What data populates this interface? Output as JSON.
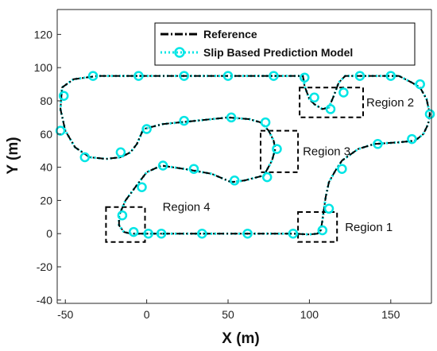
{
  "chart_data": {
    "type": "line",
    "title": "",
    "xlabel": "X (m)",
    "ylabel": "Y (m)",
    "xlim": [
      -55,
      175
    ],
    "ylim": [
      -42,
      135
    ],
    "xticks": [
      -50,
      0,
      50,
      100,
      150
    ],
    "yticks": [
      -40,
      -20,
      0,
      20,
      40,
      60,
      80,
      100,
      120
    ],
    "x_tick_labels": [
      "-50",
      "0",
      "50",
      "100",
      "150"
    ],
    "y_tick_labels": [
      "-40",
      "-20",
      "0",
      "20",
      "40",
      "60",
      "80",
      "100",
      "120"
    ],
    "grid": false,
    "legend_position": "top-right",
    "colors": {
      "reference": "#000000",
      "prediction": "#00e5e5"
    },
    "series": [
      {
        "name": "Reference",
        "style": "dash-dot",
        "x": [
          10,
          30,
          60,
          90,
          100,
          105,
          107,
          108,
          109,
          110,
          112,
          116,
          120,
          130,
          140,
          155,
          165,
          170,
          173,
          174,
          172,
          168,
          163,
          155,
          140,
          130,
          122,
          118,
          115,
          112,
          108,
          103,
          100,
          97,
          96,
          92,
          85,
          75,
          55,
          30,
          0,
          -30,
          -45,
          -52,
          -53,
          -50,
          -44,
          -35,
          -25,
          -16,
          -10,
          -6,
          -2,
          10,
          30,
          50,
          63,
          70,
          75,
          78,
          79,
          77,
          72,
          60,
          52,
          40,
          23,
          9,
          0,
          -7,
          -13,
          -17,
          -17,
          -14,
          -10,
          -5,
          2,
          10
        ],
        "y": [
          0,
          0,
          0,
          0,
          -0.5,
          0,
          2,
          8,
          15,
          22,
          31,
          38,
          44,
          51,
          54,
          55,
          56,
          60,
          66,
          72,
          81,
          88,
          91,
          95,
          95,
          95,
          95,
          91,
          83,
          76,
          75,
          78,
          81,
          89,
          95,
          95,
          95,
          95,
          95,
          95,
          95,
          95,
          93,
          88,
          75,
          62,
          52,
          46,
          45,
          46,
          49,
          54,
          63,
          66,
          68,
          70,
          69,
          67,
          62,
          56,
          51,
          44,
          35,
          32,
          31,
          36,
          39,
          41,
          37,
          28,
          20,
          11,
          5,
          1,
          0,
          0,
          0,
          0
        ]
      },
      {
        "name": "Slip Based Prediction Model",
        "style": "dotted-circles",
        "x": [
          10,
          30,
          60,
          90,
          100,
          105,
          107,
          108,
          109,
          110,
          112,
          116,
          120,
          130,
          140,
          155,
          165,
          170,
          173,
          174,
          172,
          168,
          163,
          155,
          140,
          130,
          122,
          118,
          115,
          112,
          108,
          103,
          100,
          97,
          96,
          92,
          85,
          75,
          55,
          30,
          0,
          -30,
          -45,
          -52,
          -53,
          -50,
          -44,
          -35,
          -25,
          -16,
          -10,
          -6,
          -2,
          10,
          30,
          50,
          63,
          70,
          75,
          78,
          79,
          77,
          72,
          60,
          52,
          40,
          23,
          9,
          0,
          -7,
          -13,
          -17,
          -17,
          -14,
          -10,
          -5,
          2,
          10
        ],
        "y": [
          0,
          0,
          0,
          0,
          -0.5,
          0,
          2,
          8,
          15,
          22,
          31,
          38,
          44,
          51,
          54,
          55,
          56,
          60,
          66,
          72,
          81,
          88,
          91,
          95,
          95,
          95,
          95,
          91,
          83,
          76,
          75,
          78,
          81,
          89,
          95,
          95,
          95,
          95,
          95,
          95,
          95,
          95,
          93,
          88,
          75,
          62,
          52,
          46,
          45,
          46,
          49,
          54,
          63,
          66,
          68,
          70,
          69,
          67,
          62,
          56,
          51,
          44,
          35,
          32,
          31,
          36,
          39,
          41,
          37,
          28,
          20,
          11,
          5,
          1,
          0,
          0,
          0,
          0
        ],
        "marker_points": [
          [
            1,
            0
          ],
          [
            9,
            0
          ],
          [
            34,
            0
          ],
          [
            62,
            0
          ],
          [
            90,
            0
          ],
          [
            108,
            2
          ],
          [
            112,
            15
          ],
          [
            120,
            39
          ],
          [
            142,
            54
          ],
          [
            163,
            57
          ],
          [
            174,
            72
          ],
          [
            168,
            90
          ],
          [
            150,
            95
          ],
          [
            131,
            95
          ],
          [
            121,
            85
          ],
          [
            113,
            75
          ],
          [
            103,
            82
          ],
          [
            97,
            94
          ],
          [
            78,
            95
          ],
          [
            50,
            95
          ],
          [
            23,
            95
          ],
          [
            -5,
            95
          ],
          [
            -33,
            95
          ],
          [
            -51,
            83
          ],
          [
            -53,
            62
          ],
          [
            -38,
            46
          ],
          [
            -16,
            49
          ],
          [
            0,
            63
          ],
          [
            23,
            68
          ],
          [
            52,
            70
          ],
          [
            73,
            67
          ],
          [
            80,
            51
          ],
          [
            74,
            34
          ],
          [
            54,
            32
          ],
          [
            29,
            39
          ],
          [
            10,
            41
          ],
          [
            -3,
            28
          ],
          [
            -15,
            11
          ],
          [
            -8,
            1
          ]
        ]
      }
    ],
    "annotations": [
      {
        "text": "Region 1",
        "box": {
          "x": [
            93,
            117
          ],
          "y": [
            -5,
            13
          ]
        }
      },
      {
        "text": "Region 2",
        "box": {
          "x": [
            94,
            133
          ],
          "y": [
            70,
            88
          ]
        }
      },
      {
        "text": "Region 3",
        "box": {
          "x": [
            70,
            93
          ],
          "y": [
            37,
            62
          ]
        }
      },
      {
        "text": "Region 4",
        "box": {
          "x": [
            -25,
            -1
          ],
          "y": [
            -5,
            16
          ]
        }
      }
    ]
  }
}
